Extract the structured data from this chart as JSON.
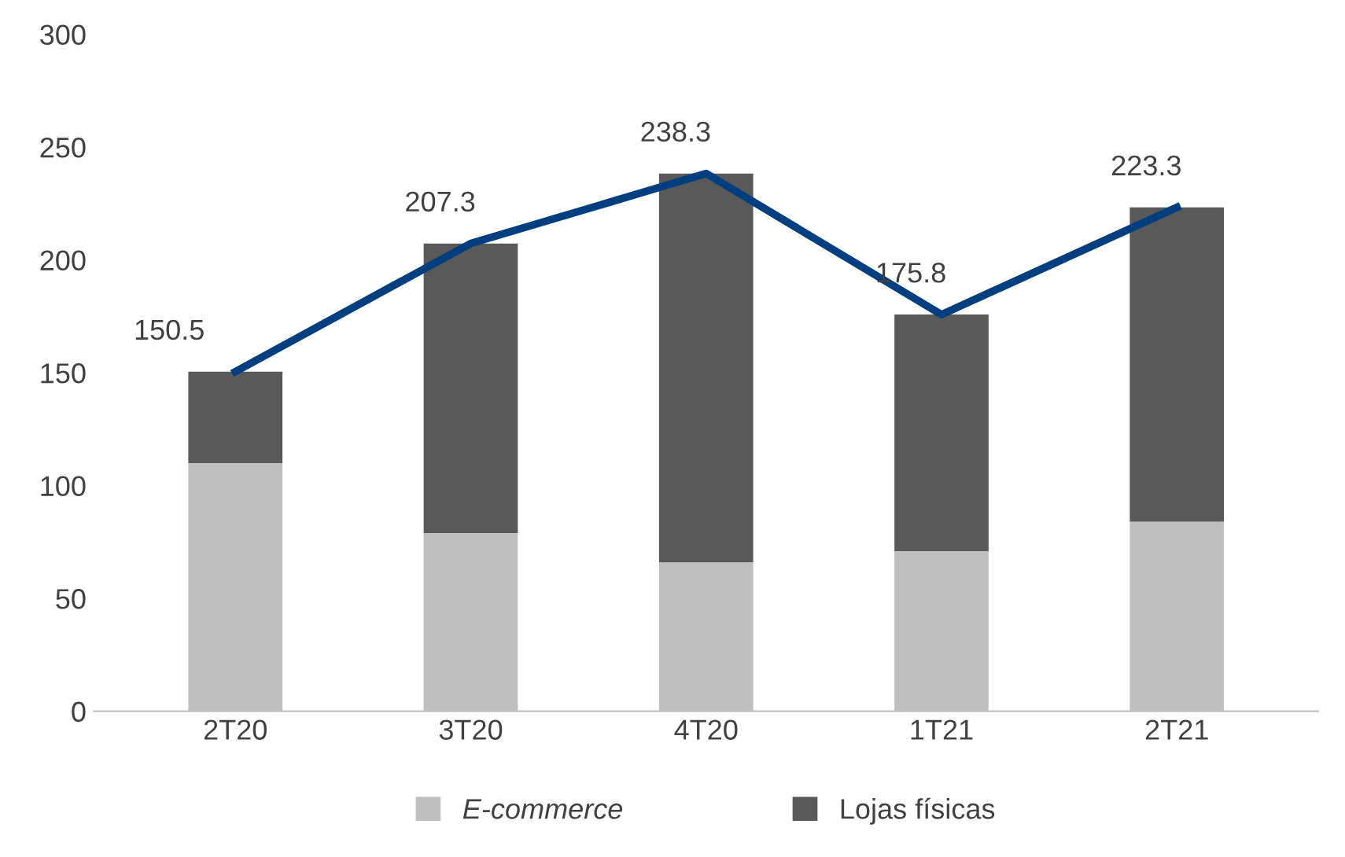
{
  "chart_data": {
    "type": "bar",
    "stacked": true,
    "categories": [
      "2T20",
      "3T20",
      "4T20",
      "1T21",
      "2T21"
    ],
    "series": [
      {
        "name": "E-commerce",
        "color": "#bfbfbf",
        "values": [
          110,
          79,
          66,
          71,
          84
        ]
      },
      {
        "name": "Lojas físicas",
        "color": "#595959",
        "values": [
          40.5,
          128.3,
          172.3,
          104.8,
          139.3
        ]
      },
      {
        "type": "line",
        "color": "#003f7f",
        "values": [
          150.5,
          207.3,
          238.3,
          175.8,
          223.3
        ],
        "value_labels": [
          "150.5",
          "207.3",
          "238.3",
          "175.8",
          "223.3"
        ],
        "marker": "none",
        "line_style": "solid"
      }
    ],
    "ylim": [
      0,
      300
    ],
    "yticks": [
      0,
      50,
      100,
      150,
      200,
      250,
      300
    ],
    "grid": false,
    "legend": "bottom"
  }
}
